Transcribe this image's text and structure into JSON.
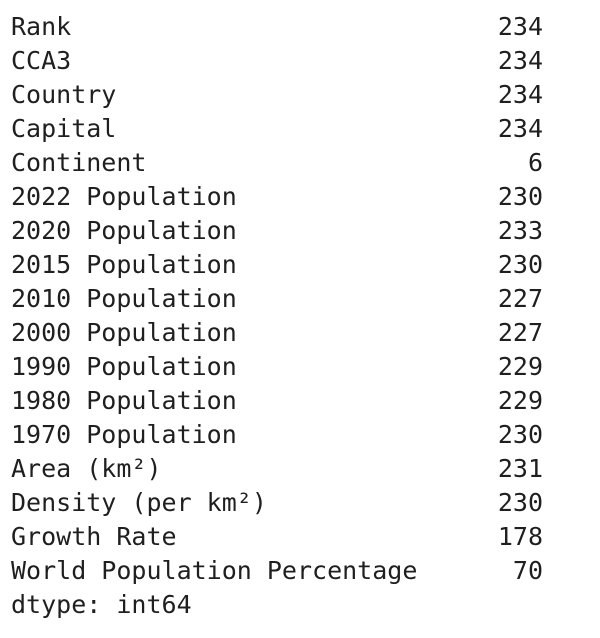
{
  "series_output": {
    "rows": [
      {
        "label": "Rank",
        "value": "234"
      },
      {
        "label": "CCA3",
        "value": "234"
      },
      {
        "label": "Country",
        "value": "234"
      },
      {
        "label": "Capital",
        "value": "234"
      },
      {
        "label": "Continent",
        "value": "6"
      },
      {
        "label": "2022 Population",
        "value": "230"
      },
      {
        "label": "2020 Population",
        "value": "233"
      },
      {
        "label": "2015 Population",
        "value": "230"
      },
      {
        "label": "2010 Population",
        "value": "227"
      },
      {
        "label": "2000 Population",
        "value": "227"
      },
      {
        "label": "1990 Population",
        "value": "229"
      },
      {
        "label": "1980 Population",
        "value": "229"
      },
      {
        "label": "1970 Population",
        "value": "230"
      },
      {
        "label": "Area (km²)",
        "value": "231"
      },
      {
        "label": "Density (per km²)",
        "value": "230"
      },
      {
        "label": "Growth Rate",
        "value": "178"
      },
      {
        "label": "World Population Percentage",
        "value": "70"
      }
    ],
    "dtype_line": "dtype: int64"
  }
}
